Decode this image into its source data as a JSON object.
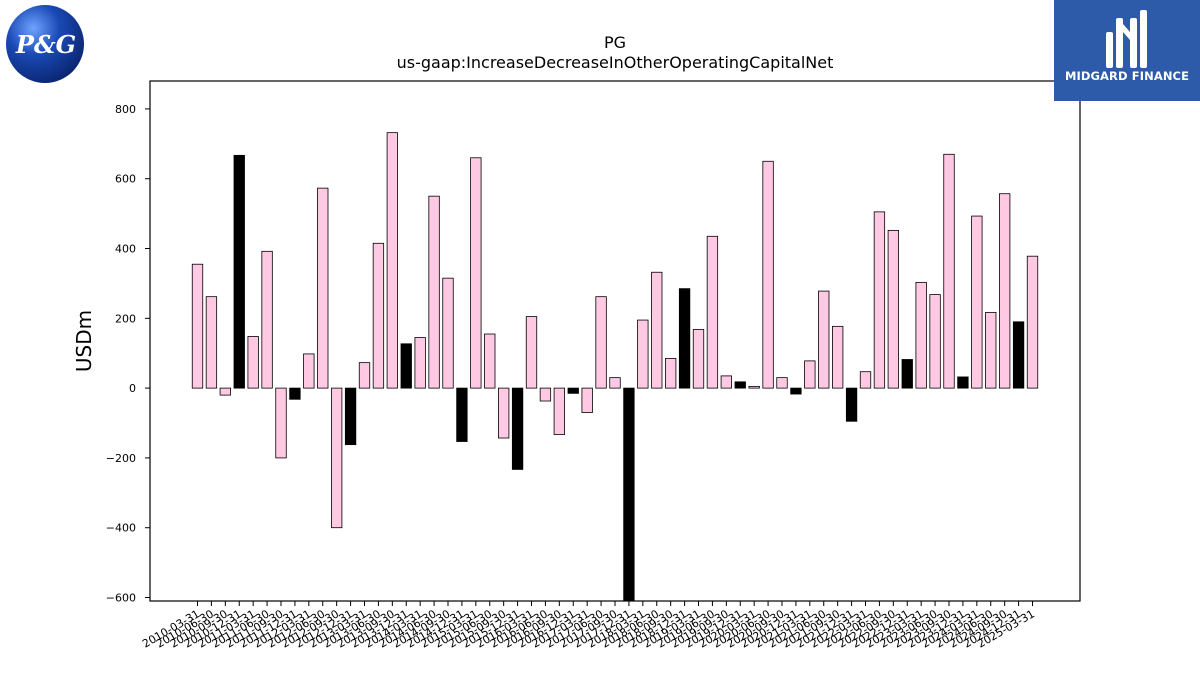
{
  "logos": {
    "left_text": "P&G",
    "right_text": "MIDGARD FINANCE"
  },
  "colors": {
    "bar_default": "#ffc9e4",
    "bar_q4": "#000000",
    "bar_edge": "#000000",
    "mf_background": "#2d5aa9",
    "pg_blue": "#1a49b5"
  },
  "chart_data": {
    "type": "bar",
    "title": "PG",
    "subtitle": "us-gaap:IncreaseDecreaseInOtherOperatingCapitalNet",
    "ylabel": "USDm",
    "xlabel": "",
    "ylim": [
      -610,
      880
    ],
    "yticks": [
      -600,
      -400,
      -200,
      0,
      200,
      400,
      600,
      800
    ],
    "grid": false,
    "categories": [
      "2010-03-31",
      "2010-06-30",
      "2010-09-30",
      "2010-12-31",
      "2011-03-31",
      "2011-06-30",
      "2011-09-30",
      "2011-12-31",
      "2012-03-31",
      "2012-06-30",
      "2012-09-30",
      "2012-12-31",
      "2013-03-31",
      "2013-06-30",
      "2013-09-30",
      "2013-12-31",
      "2014-03-31",
      "2014-06-30",
      "2014-09-30",
      "2014-12-31",
      "2015-03-31",
      "2015-06-30",
      "2015-09-30",
      "2015-12-31",
      "2016-03-31",
      "2016-06-30",
      "2016-09-30",
      "2016-12-31",
      "2017-03-31",
      "2017-06-30",
      "2017-09-30",
      "2017-12-31",
      "2018-03-31",
      "2018-06-30",
      "2018-09-30",
      "2018-12-31",
      "2019-03-31",
      "2019-06-30",
      "2019-09-30",
      "2019-12-31",
      "2020-03-31",
      "2020-06-30",
      "2020-09-30",
      "2020-12-31",
      "2021-03-31",
      "2021-06-30",
      "2021-09-30",
      "2021-12-31",
      "2022-03-31",
      "2022-06-30",
      "2022-09-30",
      "2022-12-31",
      "2023-03-31",
      "2023-06-30",
      "2023-09-30",
      "2023-12-31",
      "2024-03-31",
      "2024-06-30",
      "2024-09-30",
      "2024-12-31",
      "2025-03-31"
    ],
    "values": [
      355,
      262,
      -20,
      667,
      148,
      392,
      -200,
      -32,
      98,
      573,
      -400,
      -162,
      73,
      415,
      732,
      127,
      145,
      550,
      315,
      -153,
      660,
      155,
      -143,
      -233,
      205,
      -37,
      -133,
      -15,
      -70,
      262,
      30,
      -610,
      195,
      332,
      85,
      285,
      168,
      435,
      35,
      18,
      5,
      650,
      30,
      -17,
      78,
      278,
      177,
      -95,
      47,
      505,
      452,
      82,
      303,
      268,
      670,
      32,
      493,
      217,
      557,
      190,
      378
    ],
    "highlight_indices": [
      3,
      7,
      11,
      15,
      19,
      23,
      27,
      31,
      35,
      39,
      43,
      47,
      51,
      55,
      59
    ]
  }
}
